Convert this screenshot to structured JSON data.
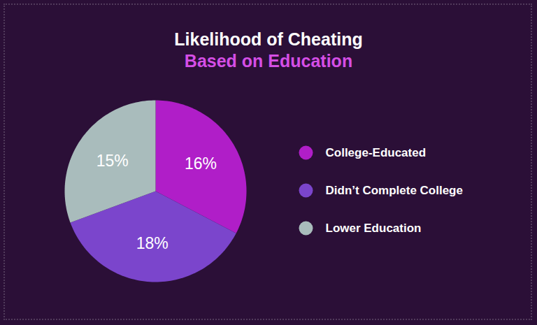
{
  "chart_data": {
    "type": "pie",
    "title": "Likelihood of Cheating",
    "subtitle": "Based on Education",
    "categories": [
      "College-Educated",
      "Didn’t Complete College",
      "Lower Education"
    ],
    "values": [
      16,
      18,
      15
    ],
    "value_labels": [
      "16%",
      "18%",
      "15%"
    ],
    "colors": [
      "#b01ec8",
      "#7b45cc",
      "#a9bcbc"
    ],
    "data_labels": true,
    "legend": "right"
  }
}
